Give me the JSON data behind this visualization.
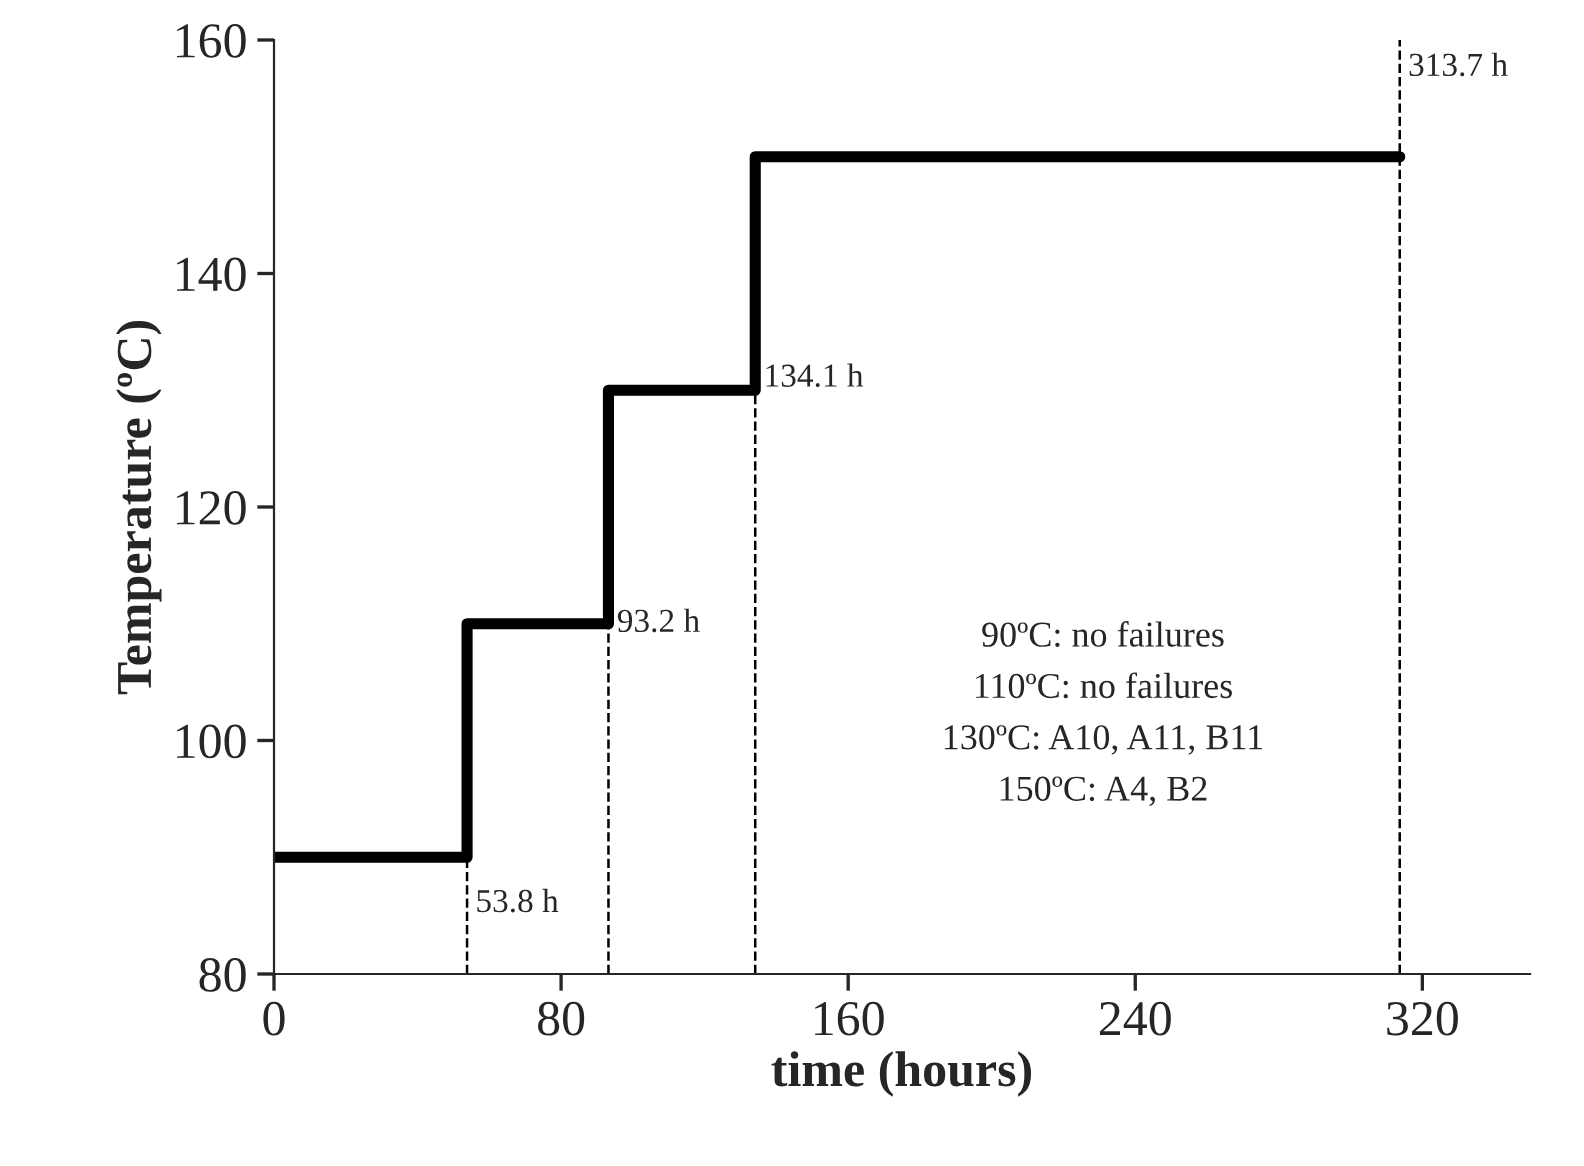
{
  "chart_data": {
    "type": "step",
    "xlabel": "time (hours)",
    "ylabel": "Temperature (ºC)",
    "series": [
      {
        "color": "#000000",
        "x": [
          0,
          53.8,
          93.2,
          134.1,
          313.7
        ],
        "values": [
          90,
          110,
          130,
          150,
          150
        ]
      }
    ],
    "xlim": [
      0,
      350
    ],
    "xticks": [
      0,
      80,
      160,
      240,
      320
    ],
    "ylim": [
      80,
      160
    ],
    "yticks": [
      80,
      100,
      120,
      140,
      160
    ],
    "ref_lines": [
      {
        "axis": "x",
        "value": 53.8,
        "line_style": "dashed",
        "color": "#000000"
      },
      {
        "axis": "x",
        "value": 93.2,
        "line_style": "dashed",
        "color": "#000000"
      },
      {
        "axis": "x",
        "value": 134.1,
        "line_style": "dashed",
        "color": "#000000"
      },
      {
        "axis": "x",
        "value": 313.7,
        "line_style": "dashed",
        "color": "#000000",
        "label": "313.7 h"
      }
    ],
    "annotations": [
      {
        "text": "53.8 h",
        "x": 53.8,
        "y": 86
      },
      {
        "text": "93.2 h",
        "x": 93.2,
        "y": 110
      },
      {
        "text": "134.1 h",
        "x": 134.1,
        "y": 131
      },
      "90ºC: no failures",
      "110ºC: no failures",
      "130ºC: A10, A11, B11",
      "150ºC: A4, B2"
    ],
    "grid": false,
    "legend": false
  }
}
